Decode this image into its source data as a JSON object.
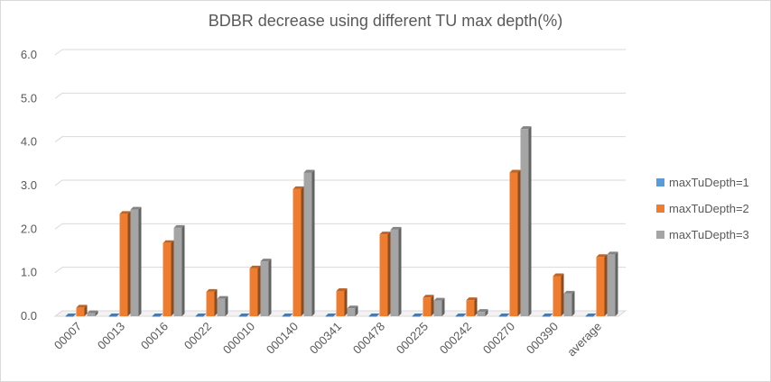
{
  "chart_data": {
    "type": "bar",
    "title": "BDBR decrease using different TU max depth(%)",
    "categories": [
      "00007",
      "00013",
      "00016",
      "00022",
      "000010",
      "000140",
      "000341",
      "000478",
      "000225",
      "000242",
      "000270",
      "000390",
      "average"
    ],
    "ylim": [
      0,
      6
    ],
    "yticks": [
      "0.0",
      "1.0",
      "2.0",
      "3.0",
      "4.0",
      "5.0",
      "6.0"
    ],
    "grid": true,
    "legend_position": "right",
    "series": [
      {
        "name": "maxTuDepth=1",
        "color": "#5b9bd5",
        "values": [
          0,
          0,
          0,
          0,
          0,
          0,
          0,
          0,
          0,
          0,
          0,
          0,
          0
        ]
      },
      {
        "name": "maxTuDepth=2",
        "color": "#ed7d31",
        "values": [
          0.2,
          2.35,
          1.68,
          0.56,
          1.1,
          2.92,
          0.58,
          1.88,
          0.43,
          0.37,
          3.3,
          0.92,
          1.36
        ]
      },
      {
        "name": "maxTuDepth=3",
        "color": "#a5a5a5",
        "values": [
          0.07,
          2.45,
          2.03,
          0.4,
          1.26,
          3.3,
          0.18,
          1.99,
          0.36,
          0.1,
          4.3,
          0.52,
          1.42
        ]
      }
    ]
  }
}
